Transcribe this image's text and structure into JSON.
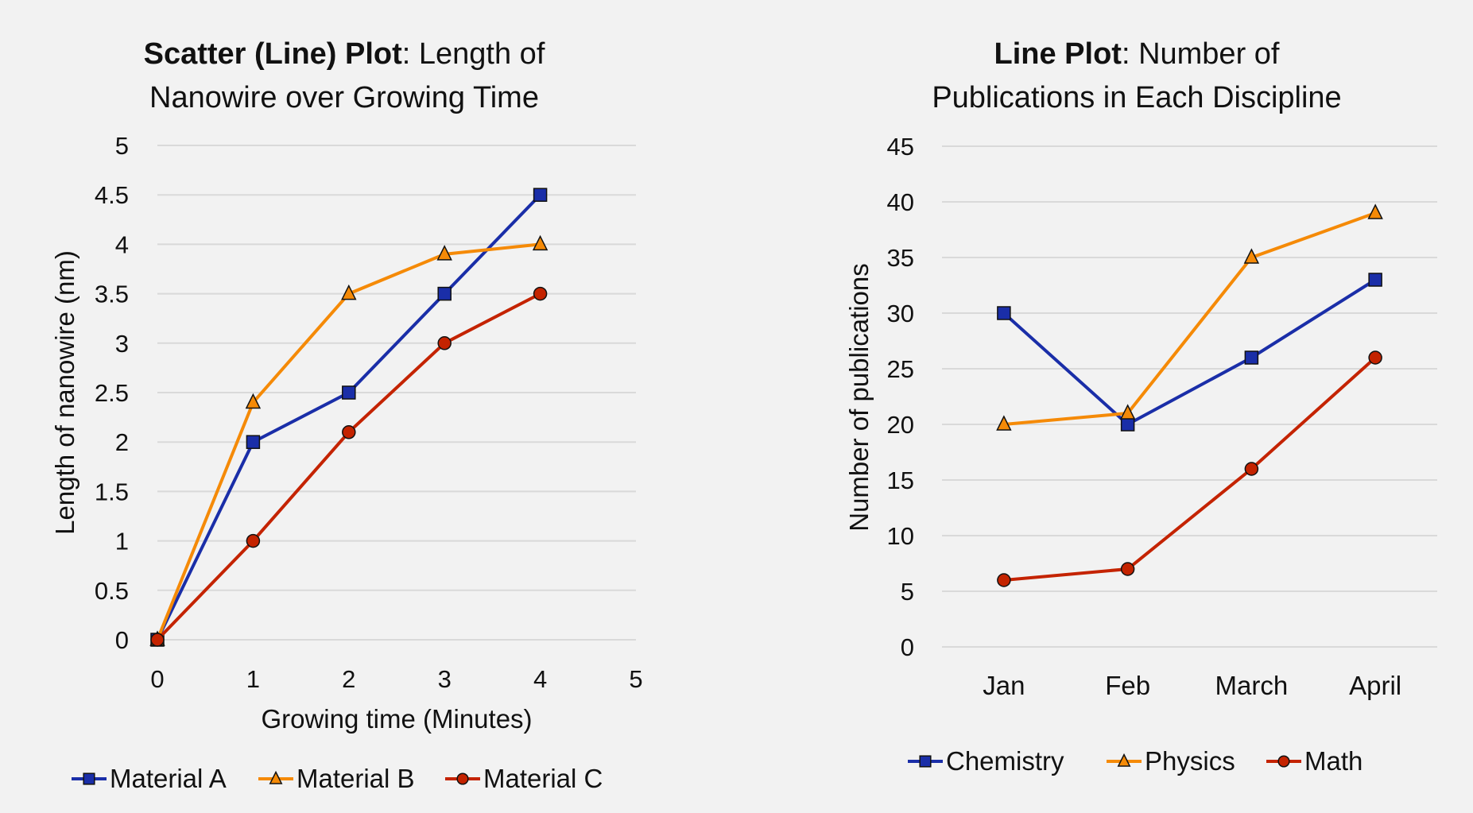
{
  "chart_data": [
    {
      "type": "line",
      "title_bold": "Scatter (Line) Plot",
      "title_rest": ": Length of",
      "title_line2": "Nanowire over Growing Time",
      "xlabel": "Growing time (Minutes)",
      "ylabel": "Length of nanowire (nm)",
      "xlim": [
        0,
        5
      ],
      "ylim": [
        0,
        5
      ],
      "xticks": [
        "0",
        "1",
        "2",
        "3",
        "4",
        "5"
      ],
      "yticks": [
        "0",
        "0.5",
        "1",
        "1.5",
        "2",
        "2.5",
        "3",
        "3.5",
        "4",
        "4.5",
        "5"
      ],
      "grid": true,
      "legend": "bottom",
      "x": [
        0,
        1,
        2,
        3,
        4
      ],
      "series": [
        {
          "name": "Material A",
          "values": [
            0,
            2,
            2.5,
            3.5,
            4.5
          ],
          "color": "#1a2ea8",
          "marker": "square"
        },
        {
          "name": "Material B",
          "values": [
            0,
            2.4,
            3.5,
            3.9,
            4.0
          ],
          "color": "#f58a07",
          "marker": "triangle"
        },
        {
          "name": "Material C",
          "values": [
            0,
            1,
            2.1,
            3,
            3.5
          ],
          "color": "#c42300",
          "marker": "circle"
        }
      ]
    },
    {
      "type": "line",
      "title_bold": "Line Plot",
      "title_rest": ": Number of",
      "title_line2": "Publications in Each Discipline",
      "xlabel": "",
      "ylabel": "Number of publications",
      "ylim": [
        0,
        45
      ],
      "yticks": [
        "0",
        "5",
        "10",
        "15",
        "20",
        "25",
        "30",
        "35",
        "40",
        "45"
      ],
      "categories": [
        "Jan",
        "Feb",
        "March",
        "April"
      ],
      "grid": true,
      "legend": "bottom",
      "series": [
        {
          "name": "Chemistry",
          "values": [
            30,
            20,
            26,
            33
          ],
          "color": "#1a2ea8",
          "marker": "square"
        },
        {
          "name": "Physics",
          "values": [
            20,
            21,
            35,
            39
          ],
          "color": "#f58a07",
          "marker": "triangle"
        },
        {
          "name": "Math",
          "values": [
            6,
            7,
            16,
            26
          ],
          "color": "#c42300",
          "marker": "circle"
        }
      ]
    }
  ]
}
